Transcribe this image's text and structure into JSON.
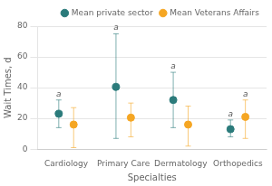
{
  "chart_data": {
    "type": "scatter",
    "xlabel": "Specialties",
    "ylabel": "Wait Times, d",
    "categories": [
      "Cardiology",
      "Primary Care",
      "Dermatology",
      "Orthopedics"
    ],
    "series": [
      {
        "name": "Mean private sector",
        "color": "#2b7b7b",
        "marker": "circle",
        "values": [
          23,
          40.5,
          32,
          13
        ],
        "ci_low": [
          14,
          7,
          14,
          8
        ],
        "ci_high": [
          32,
          75,
          50,
          19
        ],
        "annotations": [
          "a",
          "a",
          "a",
          "a"
        ]
      },
      {
        "name": "Mean Veterans Affairs",
        "color": "#f5a623",
        "marker": "circle",
        "values": [
          16,
          20.5,
          16,
          21
        ],
        "ci_low": [
          1,
          8,
          2,
          7
        ],
        "ci_high": [
          27,
          30,
          28,
          32
        ],
        "annotations": [
          null,
          null,
          null,
          "a"
        ]
      }
    ],
    "ylim": [
      0,
      80
    ],
    "yticks": [
      0,
      20,
      40,
      60,
      80
    ],
    "grid": true,
    "legend": "upper right"
  }
}
